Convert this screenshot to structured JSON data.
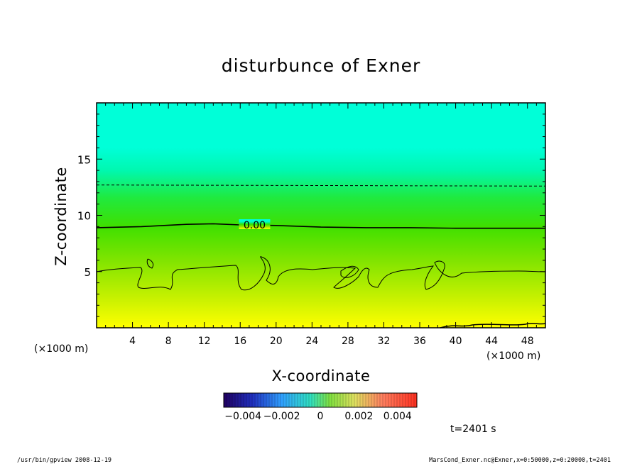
{
  "chart_data": {
    "type": "heatmap",
    "title": "disturbunce of Exner",
    "xlabel": "X-coordinate",
    "ylabel": "Z-coordinate",
    "x_unit": "(×1000 m)",
    "y_unit": "(×1000 m)",
    "xlim": [
      0,
      50
    ],
    "ylim": [
      0,
      20
    ],
    "x_ticks": [
      4,
      8,
      12,
      16,
      20,
      24,
      28,
      32,
      36,
      40,
      44,
      48
    ],
    "y_ticks": [
      5,
      10,
      15
    ],
    "contours": [
      {
        "label": "0.00",
        "style": "solid",
        "points": [
          [
            0,
            8.9
          ],
          [
            5,
            9.0
          ],
          [
            10,
            9.2
          ],
          [
            13,
            9.25
          ],
          [
            16,
            9.15
          ],
          [
            20,
            9.1
          ],
          [
            25,
            8.95
          ],
          [
            30,
            8.9
          ],
          [
            35,
            8.9
          ],
          [
            40,
            8.85
          ],
          [
            45,
            8.85
          ],
          [
            50,
            8.85
          ]
        ]
      },
      {
        "label": "",
        "style": "dashed",
        "points": [
          [
            0,
            12.7
          ],
          [
            50,
            12.6
          ]
        ]
      }
    ],
    "colorbar": {
      "tick_labels": [
        "−0.004",
        "−0.002",
        "0",
        "0.002",
        "0.004"
      ],
      "tick_values": [
        -0.004,
        -0.002,
        0,
        0.002,
        0.004
      ],
      "range": [
        -0.005,
        0.005
      ]
    },
    "colormap_colors": [
      "#ffff00",
      "#bff000",
      "#66e000",
      "#2ee85a",
      "#00ffd8"
    ],
    "annotation_time": "t=2401 s"
  },
  "footer": {
    "left": "/usr/bin/gpview   2008-12-19",
    "right": "MarsCond_Exner.nc@Exner,x=0:50000,z=0:20000,t=2401"
  }
}
